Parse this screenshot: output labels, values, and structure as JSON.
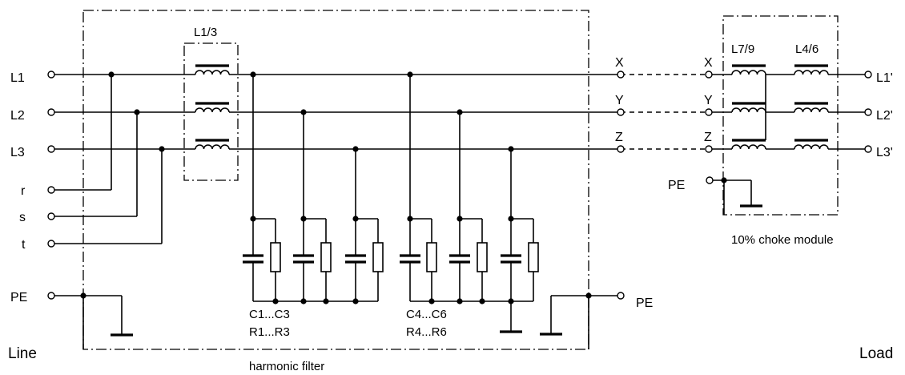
{
  "labels": {
    "line_side": "Line",
    "load_side": "Load",
    "filter_title": "harmonic filter",
    "choke_title": "10% choke module",
    "input_terminals": [
      "L1",
      "L2",
      "L3",
      "r",
      "s",
      "t",
      "PE"
    ],
    "output_pe": "PE",
    "filter_outputs": [
      "X",
      "Y",
      "Z"
    ],
    "choke_inputs": [
      "X",
      "Y",
      "Z"
    ],
    "choke_pe": "PE",
    "load_terminals": [
      "L1'",
      "L2'",
      "L3'"
    ],
    "input_choke": "L1/3",
    "choke_l1": "L7/9",
    "choke_l2": "L4/6",
    "bank1_c": "C1...C3",
    "bank1_r": "R1...R3",
    "bank2_c": "C4...C6",
    "bank2_r": "R4...R6"
  }
}
